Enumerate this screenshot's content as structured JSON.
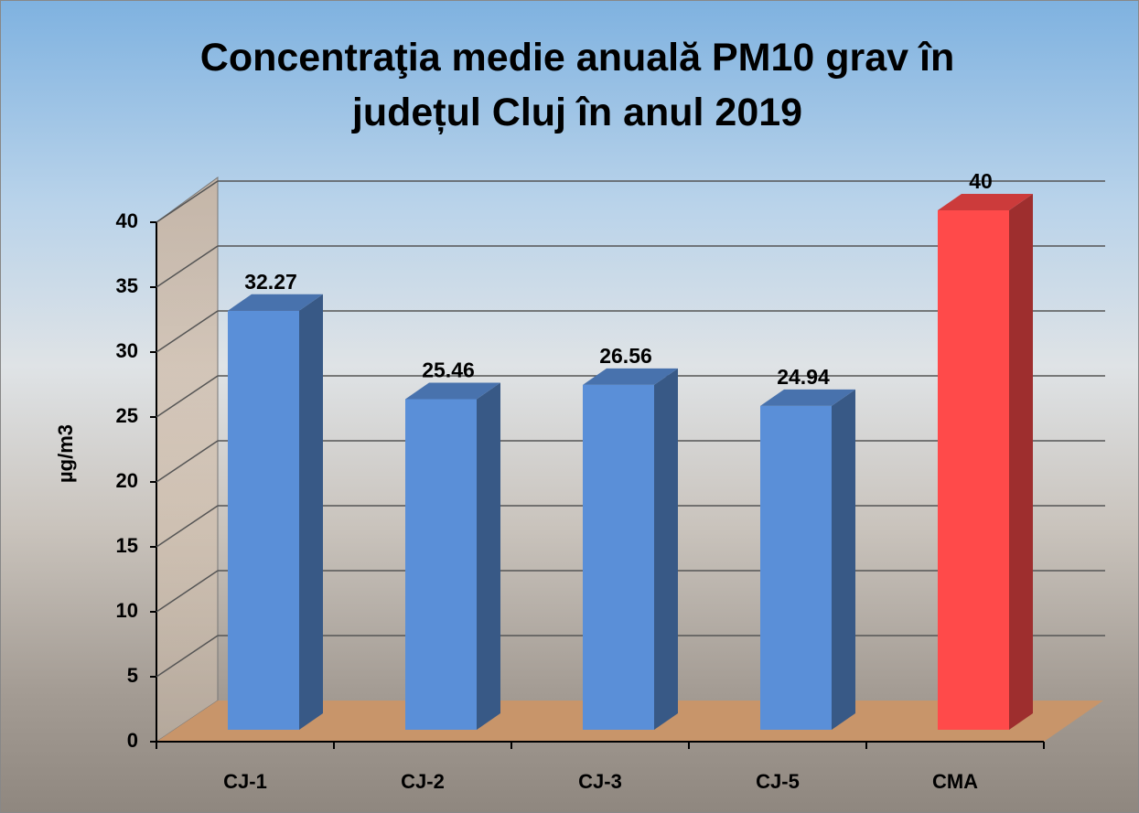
{
  "chart_data": {
    "type": "bar3d",
    "title": "Concentraţia medie anuală PM10 grav în județul Cluj în anul 2019",
    "y_label": "µg/m3",
    "categories": [
      "CJ-1",
      "CJ-2",
      "CJ-3",
      "CJ-5",
      "CMA"
    ],
    "values": [
      32.27,
      25.46,
      26.56,
      24.94,
      40
    ],
    "colors": [
      "#5a8fd8",
      "#5a8fd8",
      "#5a8fd8",
      "#5a8fd8",
      "#ff4a4a"
    ],
    "ylim": [
      0,
      40
    ],
    "yticks": [
      0,
      5,
      10,
      15,
      20,
      25,
      30,
      35,
      40
    ],
    "grid": true
  }
}
